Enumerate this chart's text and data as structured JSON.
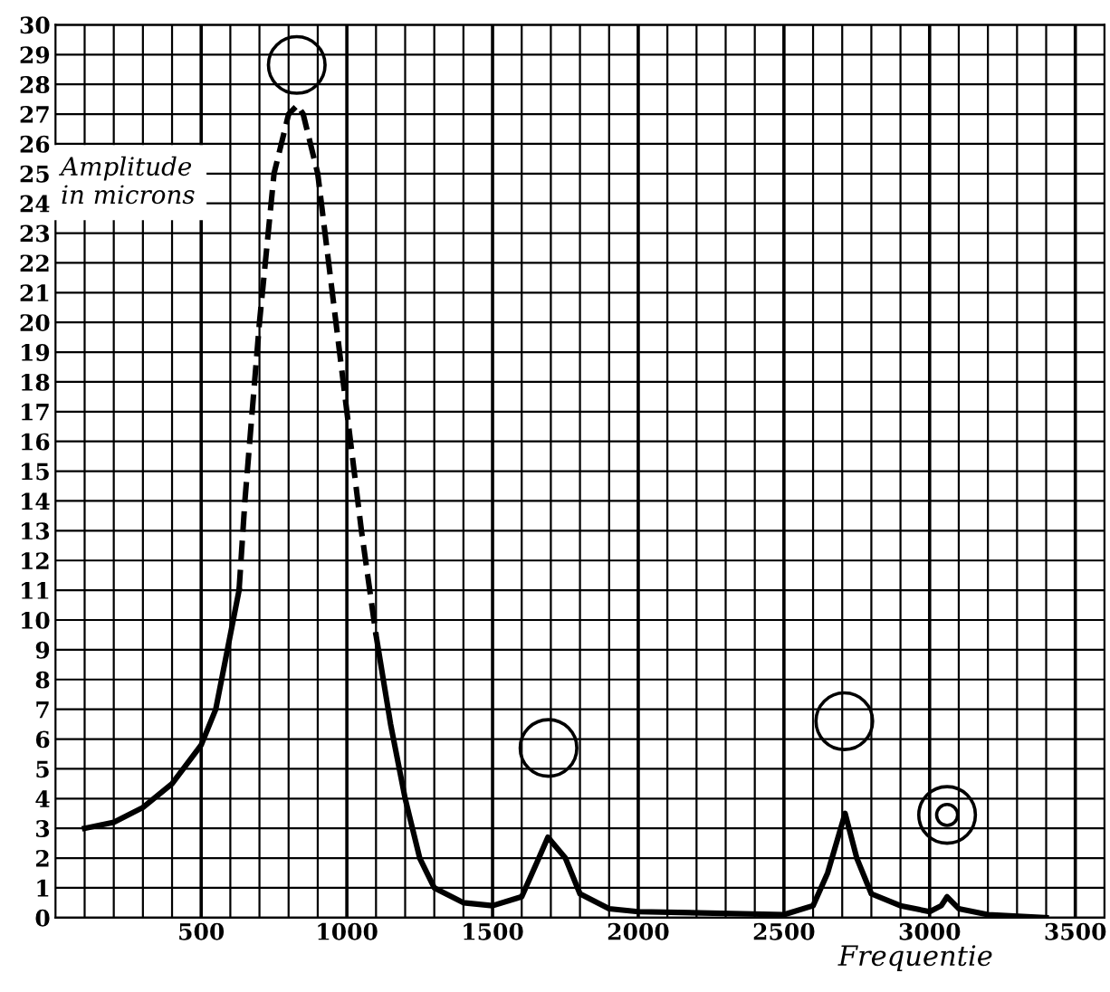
{
  "chart_data": {
    "type": "line",
    "ylabel": "Amplitude\nin microns",
    "xlabel": "Frequentie",
    "xlim": [
      0,
      3600
    ],
    "xticks": [
      500,
      1000,
      1500,
      2000,
      2500,
      3000,
      3500
    ],
    "ylim": [
      0,
      30
    ],
    "yticks": [
      0,
      1,
      2,
      3,
      4,
      5,
      6,
      7,
      8,
      9,
      10,
      11,
      12,
      13,
      14,
      15,
      16,
      17,
      18,
      19,
      20,
      21,
      22,
      23,
      24,
      25,
      26,
      27,
      28,
      29,
      30
    ],
    "grid": true,
    "marker": "none",
    "series": [
      {
        "color": "#000000",
        "line_style": "solid",
        "x": [
          100,
          200,
          300,
          400,
          500,
          550,
          600,
          630
        ],
        "values": [
          3.0,
          3.2,
          3.7,
          4.5,
          5.8,
          7,
          9.5,
          11
        ]
      },
      {
        "color": "#000000",
        "line_style": "dashed",
        "x": [
          630,
          650,
          700,
          750,
          800,
          830,
          850,
          900,
          950,
          1000,
          1050,
          1100
        ],
        "values": [
          11,
          14,
          20,
          25,
          27,
          27.3,
          27,
          25,
          21,
          17,
          13,
          9.5
        ]
      },
      {
        "color": "#000000",
        "line_style": "solid",
        "x": [
          1100,
          1150,
          1200,
          1250,
          1300,
          1400,
          1500,
          1600,
          1650,
          1690,
          1750,
          1800,
          1900,
          2000,
          2500,
          2600,
          2650,
          2710,
          2750,
          2800,
          2900,
          3000,
          3040,
          3060,
          3100,
          3200,
          3400
        ],
        "values": [
          9.5,
          6.5,
          4,
          2,
          1,
          0.5,
          0.4,
          0.7,
          1.8,
          2.7,
          2,
          0.8,
          0.3,
          0.2,
          0.1,
          0.4,
          1.5,
          3.5,
          2,
          0.8,
          0.4,
          0.2,
          0.4,
          0.7,
          0.3,
          0.1,
          0
        ]
      }
    ]
  }
}
